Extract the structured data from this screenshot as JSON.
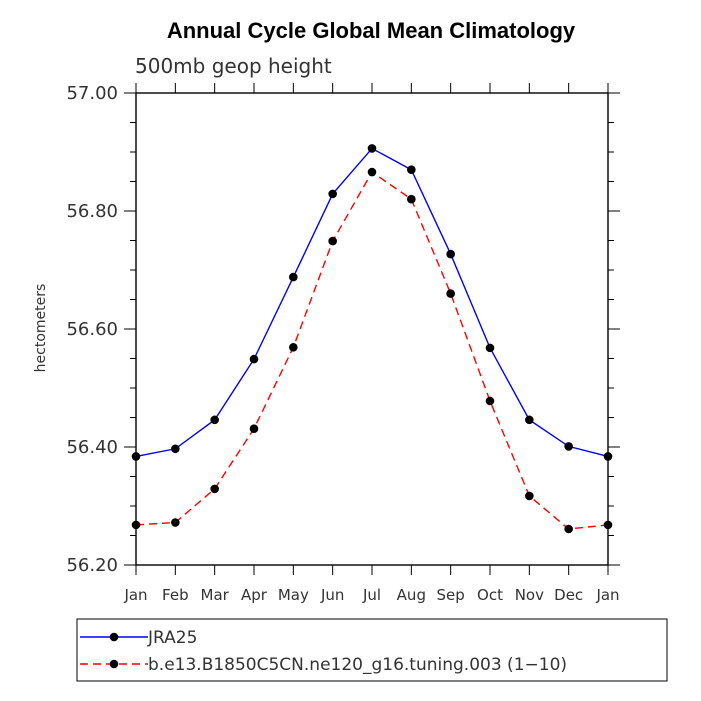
{
  "chart_data": {
    "type": "line",
    "title": "Annual Cycle Global Mean Climatology",
    "subtitle": "500mb geop height",
    "xlabel": "",
    "ylabel": "hectometers",
    "categories": [
      "Jan",
      "Feb",
      "Mar",
      "Apr",
      "May",
      "Jun",
      "Jul",
      "Aug",
      "Sep",
      "Oct",
      "Nov",
      "Dec",
      "Jan"
    ],
    "ylim": [
      56.2,
      57.0
    ],
    "yticks": [
      "56.20",
      "56.40",
      "56.60",
      "56.80",
      "57.00"
    ],
    "series": [
      {
        "name": "JRA25",
        "color": "#0000ff",
        "dash": "solid",
        "values": [
          56.384,
          56.397,
          56.446,
          56.549,
          56.688,
          56.829,
          56.906,
          56.87,
          56.727,
          56.568,
          56.446,
          56.401,
          56.384
        ]
      },
      {
        "name": "b.e13.B1850C5CN.ne120_g16.tuning.003 (1−10)",
        "color": "#ff0000",
        "dash": "dashed",
        "values": [
          56.268,
          56.272,
          56.329,
          56.431,
          56.569,
          56.749,
          56.866,
          56.82,
          56.66,
          56.478,
          56.317,
          56.261,
          56.268
        ]
      }
    ],
    "legend_position": "bottom"
  }
}
